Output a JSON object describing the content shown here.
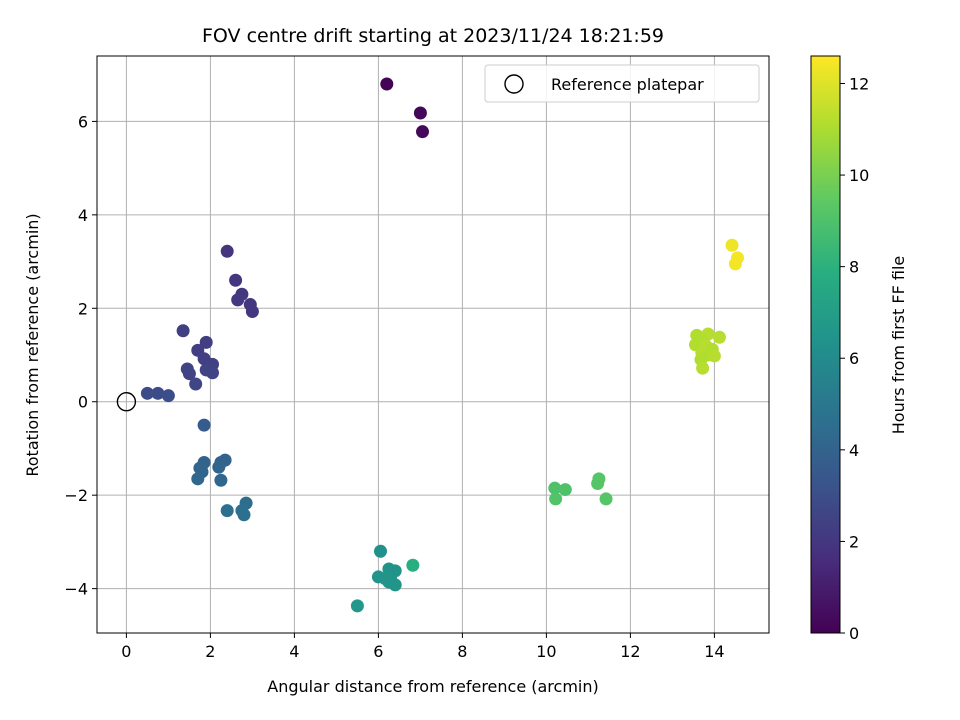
{
  "chart_data": {
    "type": "scatter",
    "title": "FOV centre drift starting at 2023/11/24 18:21:59",
    "xlabel": "Angular distance from reference (arcmin)",
    "ylabel": "Rotation from reference (arcmin)",
    "colorbar_label": "Hours from first FF file",
    "xlim": [
      -0.7,
      15.3
    ],
    "ylim": [
      -4.95,
      7.4
    ],
    "clim": [
      0,
      12.6
    ],
    "xticks": [
      0,
      2,
      4,
      6,
      8,
      10,
      12,
      14
    ],
    "yticks": [
      -4,
      -2,
      0,
      2,
      4,
      6
    ],
    "cticks": [
      0,
      2,
      4,
      6,
      8,
      10,
      12
    ],
    "grid": true,
    "legend": {
      "placement": "top-right",
      "entries": [
        "Reference platepar"
      ]
    },
    "reference": {
      "x": 0,
      "y": 0
    },
    "colormap": [
      "#440154",
      "#472d7b",
      "#3b528b",
      "#2c728e",
      "#21918c",
      "#28ae80",
      "#5ec962",
      "#addc30",
      "#fde725"
    ],
    "points": [
      {
        "x": 6.2,
        "y": 6.8,
        "c": 0.1
      },
      {
        "x": 7.0,
        "y": 6.18,
        "c": 0.2
      },
      {
        "x": 7.05,
        "y": 5.78,
        "c": 0.3
      },
      {
        "x": 2.4,
        "y": 3.22,
        "c": 1.9
      },
      {
        "x": 2.6,
        "y": 2.6,
        "c": 2.0
      },
      {
        "x": 2.75,
        "y": 2.3,
        "c": 2.0
      },
      {
        "x": 2.65,
        "y": 2.18,
        "c": 2.1
      },
      {
        "x": 2.95,
        "y": 2.08,
        "c": 2.0
      },
      {
        "x": 3.0,
        "y": 1.93,
        "c": 2.0
      },
      {
        "x": 1.35,
        "y": 1.52,
        "c": 2.3
      },
      {
        "x": 1.9,
        "y": 1.27,
        "c": 2.3
      },
      {
        "x": 1.7,
        "y": 1.1,
        "c": 2.3
      },
      {
        "x": 1.85,
        "y": 0.92,
        "c": 2.4
      },
      {
        "x": 2.05,
        "y": 0.8,
        "c": 2.4
      },
      {
        "x": 1.45,
        "y": 0.7,
        "c": 2.5
      },
      {
        "x": 1.9,
        "y": 0.68,
        "c": 2.5
      },
      {
        "x": 1.5,
        "y": 0.6,
        "c": 2.5
      },
      {
        "x": 2.05,
        "y": 0.62,
        "c": 2.5
      },
      {
        "x": 1.65,
        "y": 0.38,
        "c": 2.6
      },
      {
        "x": 0.5,
        "y": 0.18,
        "c": 2.9
      },
      {
        "x": 0.75,
        "y": 0.18,
        "c": 2.9
      },
      {
        "x": 1.0,
        "y": 0.13,
        "c": 3.0
      },
      {
        "x": 1.85,
        "y": -0.5,
        "c": 3.6
      },
      {
        "x": 2.35,
        "y": -1.25,
        "c": 4.0
      },
      {
        "x": 2.25,
        "y": -1.3,
        "c": 4.0
      },
      {
        "x": 1.85,
        "y": -1.3,
        "c": 4.0
      },
      {
        "x": 2.2,
        "y": -1.4,
        "c": 4.1
      },
      {
        "x": 1.75,
        "y": -1.42,
        "c": 4.1
      },
      {
        "x": 1.8,
        "y": -1.5,
        "c": 4.1
      },
      {
        "x": 1.7,
        "y": -1.65,
        "c": 4.2
      },
      {
        "x": 2.25,
        "y": -1.68,
        "c": 4.2
      },
      {
        "x": 2.85,
        "y": -2.17,
        "c": 4.5
      },
      {
        "x": 2.4,
        "y": -2.33,
        "c": 4.6
      },
      {
        "x": 2.75,
        "y": -2.33,
        "c": 4.6
      },
      {
        "x": 2.8,
        "y": -2.42,
        "c": 4.6
      },
      {
        "x": 6.05,
        "y": -3.2,
        "c": 6.3
      },
      {
        "x": 6.25,
        "y": -3.58,
        "c": 6.4
      },
      {
        "x": 6.4,
        "y": -3.62,
        "c": 6.4
      },
      {
        "x": 6.0,
        "y": -3.75,
        "c": 6.4
      },
      {
        "x": 6.15,
        "y": -3.78,
        "c": 6.5
      },
      {
        "x": 6.3,
        "y": -3.82,
        "c": 6.5
      },
      {
        "x": 6.25,
        "y": -3.86,
        "c": 6.5
      },
      {
        "x": 6.4,
        "y": -3.92,
        "c": 6.5
      },
      {
        "x": 5.5,
        "y": -4.37,
        "c": 6.6
      },
      {
        "x": 6.82,
        "y": -3.5,
        "c": 7.9
      },
      {
        "x": 10.2,
        "y": -1.85,
        "c": 9.0
      },
      {
        "x": 10.45,
        "y": -1.88,
        "c": 9.0
      },
      {
        "x": 10.22,
        "y": -2.08,
        "c": 9.1
      },
      {
        "x": 11.25,
        "y": -1.65,
        "c": 9.2
      },
      {
        "x": 11.22,
        "y": -1.75,
        "c": 9.2
      },
      {
        "x": 11.42,
        "y": -2.08,
        "c": 9.2
      },
      {
        "x": 13.58,
        "y": 1.42,
        "c": 11.1
      },
      {
        "x": 13.85,
        "y": 1.45,
        "c": 11.2
      },
      {
        "x": 14.12,
        "y": 1.38,
        "c": 11.2
      },
      {
        "x": 13.7,
        "y": 1.3,
        "c": 11.1
      },
      {
        "x": 13.55,
        "y": 1.22,
        "c": 11.1
      },
      {
        "x": 13.8,
        "y": 1.2,
        "c": 11.2
      },
      {
        "x": 13.95,
        "y": 1.12,
        "c": 11.1
      },
      {
        "x": 13.7,
        "y": 1.05,
        "c": 11.2
      },
      {
        "x": 13.85,
        "y": 1.0,
        "c": 11.1
      },
      {
        "x": 14.0,
        "y": 0.98,
        "c": 11.2
      },
      {
        "x": 13.68,
        "y": 0.9,
        "c": 11.1
      },
      {
        "x": 13.72,
        "y": 0.72,
        "c": 11.2
      },
      {
        "x": 14.42,
        "y": 3.35,
        "c": 12.3
      },
      {
        "x": 14.55,
        "y": 3.08,
        "c": 12.4
      },
      {
        "x": 14.5,
        "y": 2.95,
        "c": 12.4
      }
    ]
  }
}
